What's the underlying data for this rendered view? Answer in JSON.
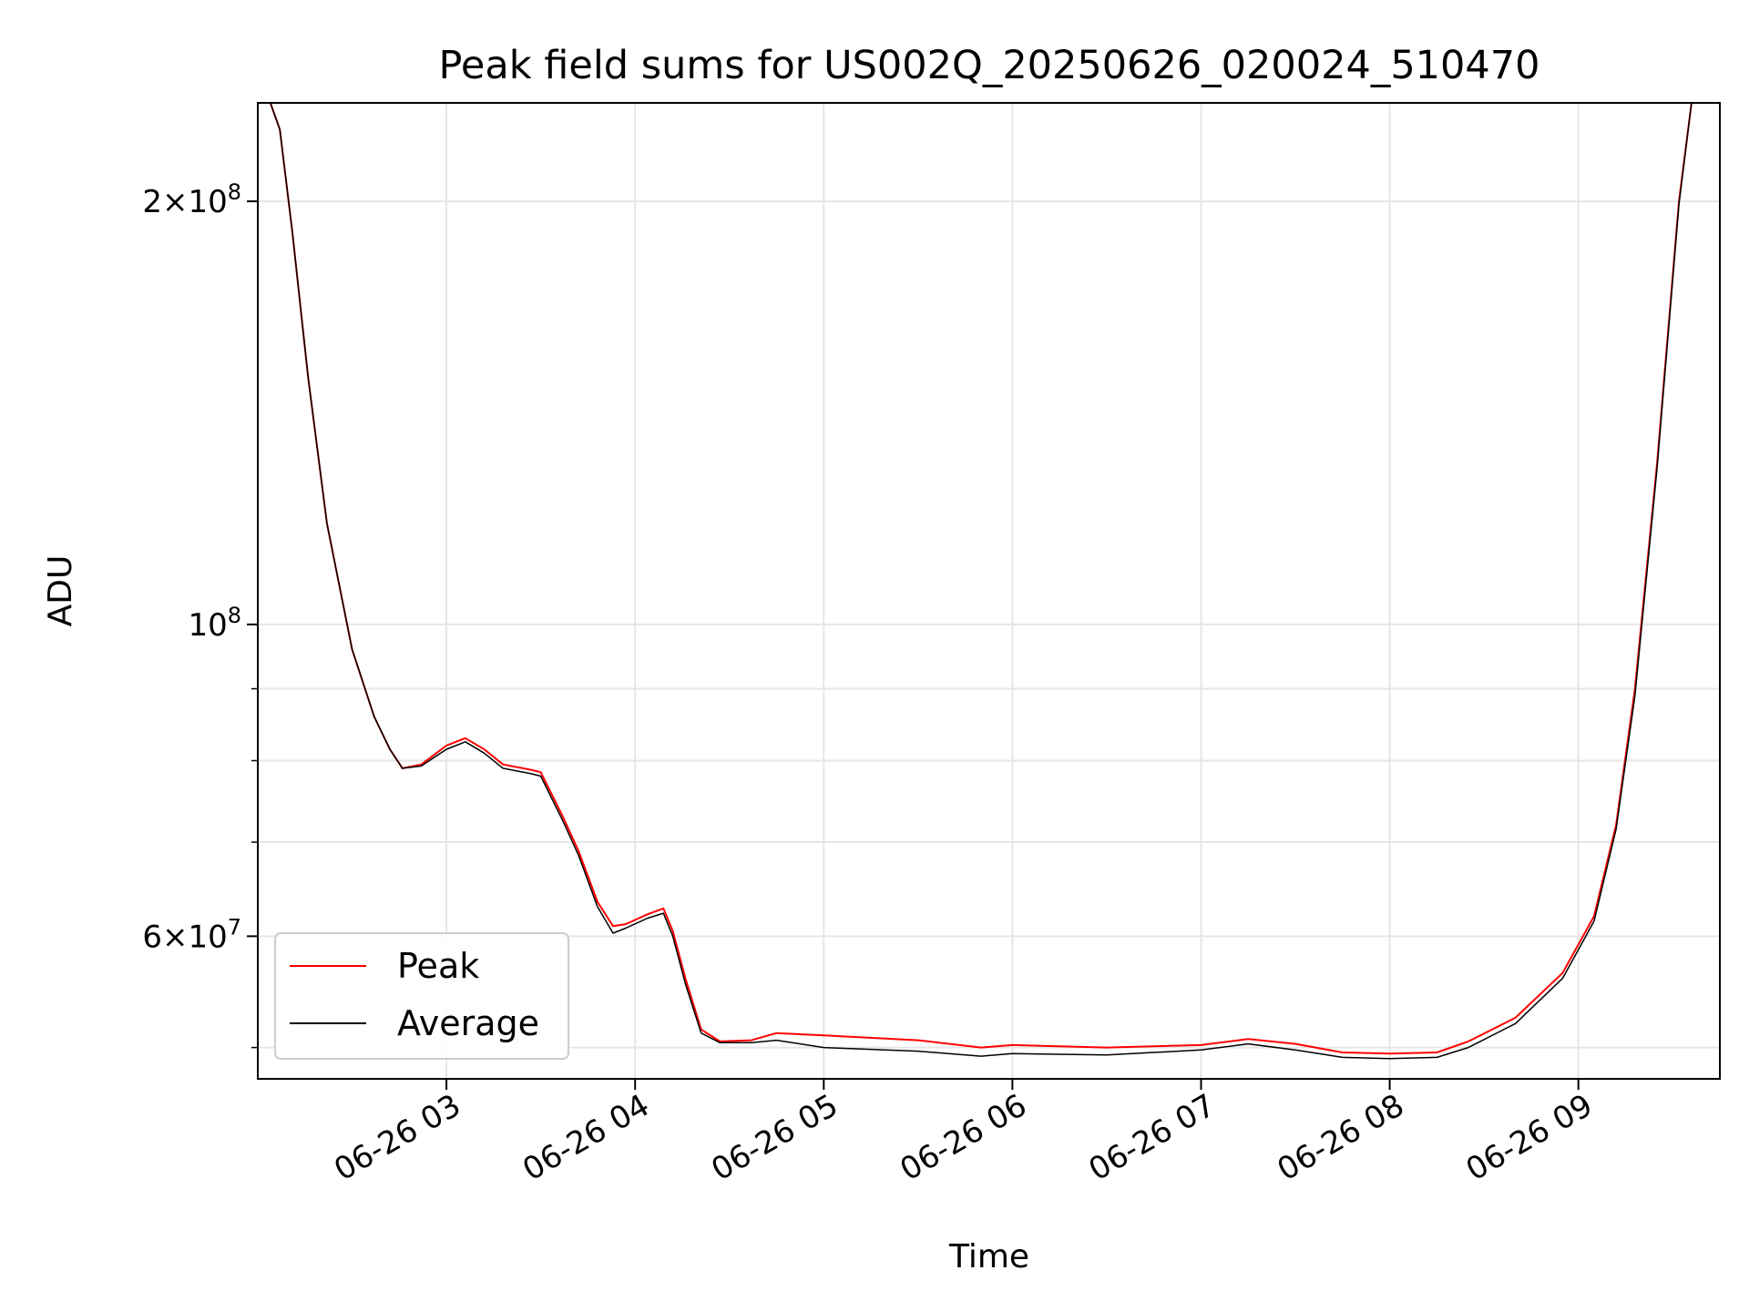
{
  "chart_data": {
    "type": "line",
    "title": "Peak field sums for US002Q_20250626_020024_510470",
    "xlabel": "Time",
    "ylabel": "ADU",
    "x_tick_labels": [
      "06-26 03",
      "06-26 04",
      "06-26 05",
      "06-26 06",
      "06-26 07",
      "06-26 08",
      "06-26 09"
    ],
    "x_tick_values": [
      "2025-06-26T03:00",
      "2025-06-26T04:00",
      "2025-06-26T05:00",
      "2025-06-26T06:00",
      "2025-06-26T07:00",
      "2025-06-26T08:00",
      "2025-06-26T09:00"
    ],
    "xlim": [
      "2025-06-26T02:00",
      "2025-06-26T09:45"
    ],
    "y_scale": "log",
    "ylim": [
      47500000,
      235000000
    ],
    "y_tick_labels": [
      {
        "value": 200000000,
        "mantissa": "2",
        "times": "×10",
        "exp": "8"
      },
      {
        "value": 100000000,
        "mantissa": "",
        "times": "10",
        "exp": "8"
      },
      {
        "value": 60000000,
        "mantissa": "6",
        "times": "×10",
        "exp": "7"
      }
    ],
    "y_minor_ticks": [
      50000000,
      70000000,
      80000000,
      90000000
    ],
    "grid": true,
    "legend_position": "lower-left",
    "series": [
      {
        "name": "Peak",
        "color": "#ff0000",
        "points": [
          [
            "2025-06-26T02:00",
            235000000
          ],
          [
            "2025-06-26T02:04",
            235000000
          ],
          [
            "2025-06-26T02:07",
            225000000
          ],
          [
            "2025-06-26T02:11",
            190000000
          ],
          [
            "2025-06-26T02:16",
            150000000
          ],
          [
            "2025-06-26T02:22",
            118000000
          ],
          [
            "2025-06-26T02:30",
            96000000
          ],
          [
            "2025-06-26T02:37",
            86000000
          ],
          [
            "2025-06-26T02:42",
            81500000
          ],
          [
            "2025-06-26T02:46",
            79000000
          ],
          [
            "2025-06-26T02:52",
            79500000
          ],
          [
            "2025-06-26T03:00",
            82000000
          ],
          [
            "2025-06-26T03:06",
            83000000
          ],
          [
            "2025-06-26T03:12",
            81500000
          ],
          [
            "2025-06-26T03:18",
            79500000
          ],
          [
            "2025-06-26T03:27",
            78800000
          ],
          [
            "2025-06-26T03:30",
            78500000
          ],
          [
            "2025-06-26T03:37",
            73000000
          ],
          [
            "2025-06-26T03:42",
            69000000
          ],
          [
            "2025-06-26T03:48",
            63500000
          ],
          [
            "2025-06-26T03:53",
            61000000
          ],
          [
            "2025-06-26T03:57",
            61200000
          ],
          [
            "2025-06-26T04:04",
            62200000
          ],
          [
            "2025-06-26T04:09",
            62800000
          ],
          [
            "2025-06-26T04:12",
            60500000
          ],
          [
            "2025-06-26T04:16",
            56000000
          ],
          [
            "2025-06-26T04:21",
            51500000
          ],
          [
            "2025-06-26T04:27",
            50500000
          ],
          [
            "2025-06-26T04:37",
            50600000
          ],
          [
            "2025-06-26T04:45",
            51200000
          ],
          [
            "2025-06-26T05:00",
            51000000
          ],
          [
            "2025-06-26T05:30",
            50600000
          ],
          [
            "2025-06-26T05:50",
            50000000
          ],
          [
            "2025-06-26T06:00",
            50200000
          ],
          [
            "2025-06-26T06:30",
            50000000
          ],
          [
            "2025-06-26T07:00",
            50200000
          ],
          [
            "2025-06-26T07:15",
            50700000
          ],
          [
            "2025-06-26T07:30",
            50300000
          ],
          [
            "2025-06-26T07:45",
            49600000
          ],
          [
            "2025-06-26T08:00",
            49500000
          ],
          [
            "2025-06-26T08:15",
            49600000
          ],
          [
            "2025-06-26T08:25",
            50500000
          ],
          [
            "2025-06-26T08:40",
            52500000
          ],
          [
            "2025-06-26T08:55",
            56500000
          ],
          [
            "2025-06-26T09:05",
            62000000
          ],
          [
            "2025-06-26T09:12",
            72000000
          ],
          [
            "2025-06-26T09:18",
            90000000
          ],
          [
            "2025-06-26T09:25",
            130000000
          ],
          [
            "2025-06-26T09:32",
            200000000
          ],
          [
            "2025-06-26T09:36",
            235000000
          ],
          [
            "2025-06-26T09:45",
            235000000
          ]
        ]
      },
      {
        "name": "Average",
        "color": "#000000",
        "points": [
          [
            "2025-06-26T02:00",
            235000000
          ],
          [
            "2025-06-26T02:04",
            235000000
          ],
          [
            "2025-06-26T02:07",
            225000000
          ],
          [
            "2025-06-26T02:11",
            190000000
          ],
          [
            "2025-06-26T02:16",
            150000000
          ],
          [
            "2025-06-26T02:22",
            118000000
          ],
          [
            "2025-06-26T02:30",
            96000000
          ],
          [
            "2025-06-26T02:37",
            86000000
          ],
          [
            "2025-06-26T02:42",
            81500000
          ],
          [
            "2025-06-26T02:46",
            79000000
          ],
          [
            "2025-06-26T02:52",
            79300000
          ],
          [
            "2025-06-26T03:00",
            81500000
          ],
          [
            "2025-06-26T03:06",
            82500000
          ],
          [
            "2025-06-26T03:12",
            81000000
          ],
          [
            "2025-06-26T03:18",
            79000000
          ],
          [
            "2025-06-26T03:27",
            78300000
          ],
          [
            "2025-06-26T03:30",
            78000000
          ],
          [
            "2025-06-26T03:37",
            72500000
          ],
          [
            "2025-06-26T03:42",
            68500000
          ],
          [
            "2025-06-26T03:48",
            63000000
          ],
          [
            "2025-06-26T03:53",
            60300000
          ],
          [
            "2025-06-26T03:57",
            60800000
          ],
          [
            "2025-06-26T04:04",
            61800000
          ],
          [
            "2025-06-26T04:09",
            62300000
          ],
          [
            "2025-06-26T04:12",
            60000000
          ],
          [
            "2025-06-26T04:16",
            55500000
          ],
          [
            "2025-06-26T04:21",
            51200000
          ],
          [
            "2025-06-26T04:27",
            50400000
          ],
          [
            "2025-06-26T04:37",
            50400000
          ],
          [
            "2025-06-26T04:45",
            50600000
          ],
          [
            "2025-06-26T05:00",
            50000000
          ],
          [
            "2025-06-26T05:30",
            49700000
          ],
          [
            "2025-06-26T05:50",
            49300000
          ],
          [
            "2025-06-26T06:00",
            49500000
          ],
          [
            "2025-06-26T06:30",
            49400000
          ],
          [
            "2025-06-26T07:00",
            49800000
          ],
          [
            "2025-06-26T07:15",
            50300000
          ],
          [
            "2025-06-26T07:30",
            49800000
          ],
          [
            "2025-06-26T07:45",
            49200000
          ],
          [
            "2025-06-26T08:00",
            49100000
          ],
          [
            "2025-06-26T08:15",
            49200000
          ],
          [
            "2025-06-26T08:25",
            50000000
          ],
          [
            "2025-06-26T08:40",
            52000000
          ],
          [
            "2025-06-26T08:55",
            56000000
          ],
          [
            "2025-06-26T09:05",
            61500000
          ],
          [
            "2025-06-26T09:12",
            71500000
          ],
          [
            "2025-06-26T09:18",
            89000000
          ],
          [
            "2025-06-26T09:25",
            129000000
          ],
          [
            "2025-06-26T09:32",
            199000000
          ],
          [
            "2025-06-26T09:36",
            235000000
          ],
          [
            "2025-06-26T09:45",
            235000000
          ]
        ]
      }
    ]
  }
}
